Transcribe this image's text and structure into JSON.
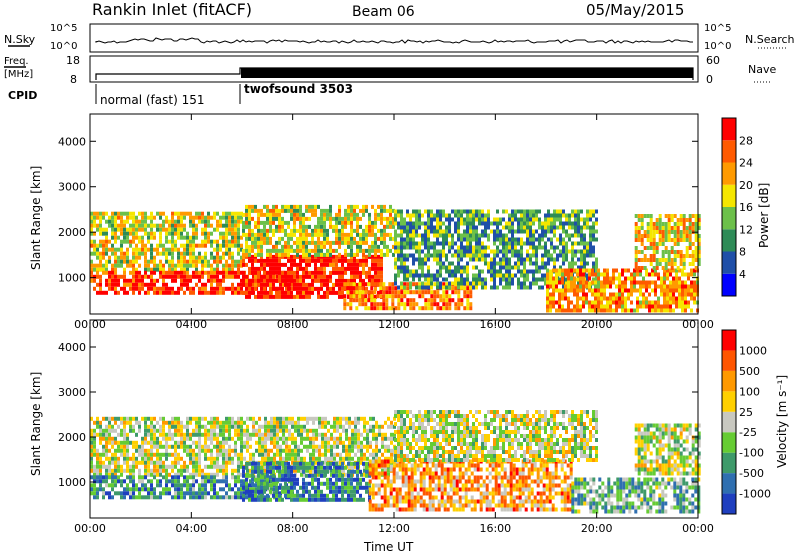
{
  "header": {
    "title": "Rankin Inlet (fitACF)",
    "beam": "Beam 06",
    "date": "05/May/2015"
  },
  "top_panels": {
    "nsky_label": "N.Sky",
    "nsearch_label": "N.Search",
    "nsky_ticks": [
      "10^5",
      "10^0"
    ],
    "nsearch_ticks": [
      "10^5",
      "10^0"
    ],
    "freq_label": "Freq.",
    "freq_unit": "[MHz]",
    "freq_ticks": [
      "18",
      "8"
    ],
    "nave_label": "Nave",
    "nave_ticks": [
      "60",
      "0"
    ],
    "cpid_label": "CPID",
    "cpid_modes": [
      "normal (fast) 151",
      "twofsound 3503"
    ]
  },
  "chart_data": [
    {
      "type": "heatmap",
      "name": "power",
      "ylabel": "Slant Range [km]",
      "xlabel": "Time UT",
      "xlim": [
        0,
        24
      ],
      "ylim": [
        200,
        4600
      ],
      "x_ticks": [
        "00:00",
        "04:00",
        "08:00",
        "12:00",
        "16:00",
        "20:00",
        "00:00"
      ],
      "y_ticks": [
        1000,
        2000,
        3000,
        4000
      ],
      "colorbar": {
        "label": "Power [dB]",
        "ticks": [
          "4",
          "8",
          "12",
          "16",
          "20",
          "24",
          "28"
        ],
        "colors": [
          "#0000ff",
          "#1f4fa8",
          "#2e8b57",
          "#6cc04a",
          "#f5e600",
          "#ff9a00",
          "#ff5a00",
          "#ff0000"
        ]
      },
      "echo_bands": [
        {
          "t0": 0.0,
          "t1": 6.0,
          "r0": 1200,
          "r1": 2450,
          "level": 0.55
        },
        {
          "t0": 0.0,
          "t1": 8.0,
          "r0": 650,
          "r1": 1150,
          "level": 0.9
        },
        {
          "t0": 6.0,
          "t1": 11.5,
          "r0": 600,
          "r1": 1500,
          "level": 0.95
        },
        {
          "t0": 6.0,
          "t1": 12.0,
          "r0": 1500,
          "r1": 2600,
          "level": 0.55
        },
        {
          "t0": 10.0,
          "t1": 15.0,
          "r0": 300,
          "r1": 900,
          "level": 0.75
        },
        {
          "t0": 12.0,
          "t1": 20.0,
          "r0": 800,
          "r1": 2500,
          "level": 0.35
        },
        {
          "t0": 18.0,
          "t1": 24.0,
          "r0": 300,
          "r1": 1200,
          "level": 0.7
        },
        {
          "t0": 21.5,
          "t1": 24.0,
          "r0": 1200,
          "r1": 2400,
          "level": 0.6
        }
      ]
    },
    {
      "type": "heatmap",
      "name": "velocity",
      "ylabel": "Slant Range [km]",
      "xlabel": "Time UT",
      "xlim": [
        0,
        24
      ],
      "ylim": [
        200,
        4600
      ],
      "x_ticks": [
        "00:00",
        "04:00",
        "08:00",
        "12:00",
        "16:00",
        "20:00",
        "00:00"
      ],
      "y_ticks": [
        1000,
        2000,
        3000,
        4000
      ],
      "colorbar": {
        "label": "Velocity [m s⁻¹]",
        "ticks": [
          "1000",
          "500",
          "100",
          "25",
          "-25",
          "-100",
          "-500",
          "-1000"
        ],
        "colors": [
          "#1f3fbf",
          "#2f6fb0",
          "#3e9a6a",
          "#66cc33",
          "#c8c8c0",
          "#ffd000",
          "#ff9900",
          "#ff5500",
          "#ff0000"
        ]
      },
      "echo_bands": [
        {
          "t0": 0.0,
          "t1": 12.0,
          "r0": 1200,
          "r1": 2450,
          "level": 0.5
        },
        {
          "t0": 0.0,
          "t1": 8.0,
          "r0": 650,
          "r1": 1150,
          "level": 0.25
        },
        {
          "t0": 6.0,
          "t1": 11.0,
          "r0": 600,
          "r1": 1450,
          "level": 0.2
        },
        {
          "t0": 11.0,
          "t1": 19.0,
          "r0": 400,
          "r1": 1500,
          "level": 0.7
        },
        {
          "t0": 12.0,
          "t1": 20.0,
          "r0": 1500,
          "r1": 2600,
          "level": 0.5
        },
        {
          "t0": 19.0,
          "t1": 24.0,
          "r0": 300,
          "r1": 1100,
          "level": 0.35
        },
        {
          "t0": 21.5,
          "t1": 24.0,
          "r0": 1200,
          "r1": 2300,
          "level": 0.5
        }
      ]
    }
  ]
}
